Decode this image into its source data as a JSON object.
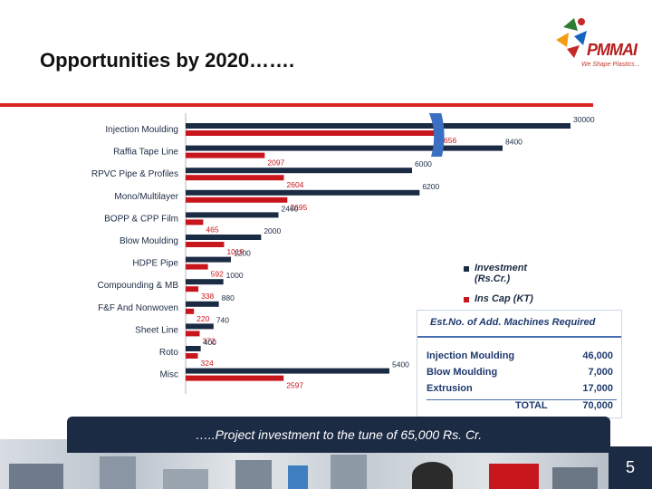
{
  "title": "Opportunities by 2020…….",
  "logo": {
    "name": "PMMAI",
    "tagline": "We Shape Plastics..."
  },
  "colors": {
    "investment": "#1c2b44",
    "ins_cap": "#c8161d",
    "accent": "#d9271f",
    "axis_break": "#3a6fc4"
  },
  "chart_data": {
    "type": "bar",
    "orientation": "horizontal",
    "categories": [
      "Injection Moulding",
      "Raffia Tape Line",
      "RPVC Pipe & Profiles",
      "Mono/Multilayer",
      "BOPP & CPP Film",
      "Blow Moulding",
      "HDPE Pipe",
      "Compounding & MB",
      "F&F And Nonwoven",
      "Sheet Line",
      "Roto",
      "Misc"
    ],
    "series": [
      {
        "name": "Investment (Rs.Cr.)",
        "values": [
          30000,
          8400,
          6000,
          6200,
          2460,
          2000,
          1200,
          1000,
          880,
          740,
          400,
          5400
        ]
      },
      {
        "name": "Ins Cap (KT)",
        "values": [
          6656,
          2097,
          2604,
          2695,
          465,
          1019,
          592,
          338,
          220,
          372,
          324,
          2597
        ]
      }
    ],
    "axis_break": true,
    "legend_position": "right"
  },
  "table": {
    "header": "Est.No. of  Add. Machines Required",
    "rows": [
      {
        "name": "Injection Moulding",
        "value": "46,000"
      },
      {
        "name": "Blow Moulding",
        "value": "7,000"
      },
      {
        "name": "Extrusion",
        "value": "17,000"
      }
    ],
    "total_label": "TOTAL",
    "total_value": "70,000"
  },
  "banner": "…..Project investment to the tune of 65,000 Rs. Cr.",
  "page_number": "5"
}
